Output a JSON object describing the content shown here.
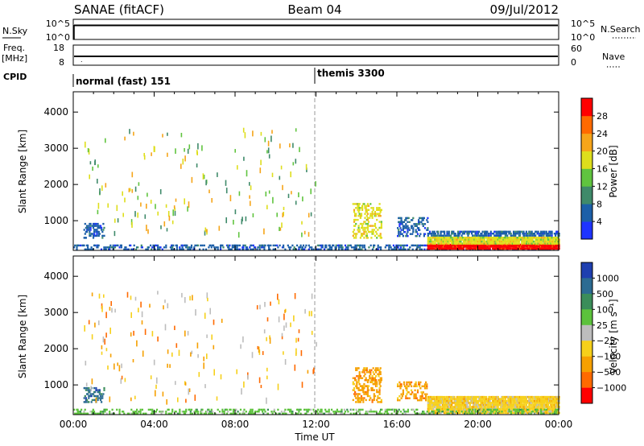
{
  "header": {
    "station": "SANAE (fitACF)",
    "beam": "Beam 04",
    "date": "09/Jul/2012"
  },
  "panels": {
    "nsky": {
      "label": "N.Sky",
      "left_ticks": [
        "10^5",
        "10^0"
      ],
      "right_ticks": [
        "10^5",
        "10^0"
      ],
      "right_label": "N.Search",
      "value": 100000
    },
    "freq": {
      "label": "Freq.",
      "unit": "[MHz]",
      "left_ticks": [
        "18",
        "8"
      ],
      "right_ticks": [
        "60",
        "0"
      ],
      "right_label": "Nave",
      "value": 12
    },
    "cpid": {
      "label": "CPID",
      "segments": [
        {
          "name": "normal (fast) 151",
          "start_hour": 0
        },
        {
          "name": "themis 3300",
          "start_hour": 12
        }
      ]
    }
  },
  "chart_data": [
    {
      "type": "heatmap",
      "name": "Power",
      "ylabel": "Slant Range [km]",
      "ylim": [
        180,
        4560
      ],
      "yticks": [
        1000,
        2000,
        3000,
        4000
      ],
      "xlim": [
        0,
        24
      ],
      "colorbar": {
        "label": "Power [dB]",
        "ticks": [
          "4",
          "8",
          "12",
          "16",
          "20",
          "24",
          "28"
        ],
        "range": [
          0,
          32
        ],
        "colors": [
          "#1e34ff",
          "#1c5fa8",
          "#3f8a6a",
          "#60c43f",
          "#dede1c",
          "#f6a51a",
          "#ff6a00",
          "#ff0000"
        ]
      },
      "bands": [
        {
          "x": [
            0.0,
            24.0
          ],
          "y": [
            180,
            300
          ],
          "value": 6,
          "density": 0.35
        },
        {
          "x": [
            17.5,
            24.0
          ],
          "y": [
            200,
            340
          ],
          "value": 28,
          "density": 0.95
        },
        {
          "x": [
            17.5,
            24.0
          ],
          "y": [
            340,
            560
          ],
          "value": 16,
          "density": 0.85
        },
        {
          "x": [
            17.5,
            24.0
          ],
          "y": [
            560,
            700
          ],
          "value": 6,
          "density": 0.55
        },
        {
          "x": [
            13.8,
            15.2
          ],
          "y": [
            500,
            1450
          ],
          "value": 18,
          "density": 0.3
        },
        {
          "x": [
            16.0,
            17.5
          ],
          "y": [
            550,
            1100
          ],
          "value": 6,
          "density": 0.3
        },
        {
          "x": [
            0.5,
            1.5
          ],
          "y": [
            500,
            900
          ],
          "value": 6,
          "density": 0.35
        }
      ],
      "scatter": {
        "x": [
          0.5,
          12.0
        ],
        "y": [
          600,
          3600
        ],
        "count": 170,
        "palette": [
          2,
          3,
          4,
          5
        ]
      }
    },
    {
      "type": "heatmap",
      "name": "Velocity",
      "ylabel": "Slant Range [km]",
      "ylim": [
        180,
        4560
      ],
      "yticks": [
        1000,
        2000,
        3000,
        4000
      ],
      "xlim": [
        0,
        24
      ],
      "xticks": [
        "00:00",
        "04:00",
        "08:00",
        "12:00",
        "16:00",
        "20:00",
        "00:00"
      ],
      "xlabel": "Time UT",
      "colorbar": {
        "label": "Velocity [m s⁻¹]",
        "ticks": [
          "1000",
          "500",
          "100",
          "25",
          "−25",
          "−100",
          "−500",
          "−1000"
        ],
        "colors": [
          "#1e3fb0",
          "#2c6b92",
          "#3b8d5a",
          "#5cc23c",
          "#bdbdbd",
          "#f6d01a",
          "#f6a000",
          "#ff6a00",
          "#ff0000"
        ]
      },
      "bands": [
        {
          "x": [
            17.5,
            24.0
          ],
          "y": [
            200,
            650
          ],
          "value": -100,
          "density": 0.85
        },
        {
          "x": [
            0.0,
            24.0
          ],
          "y": [
            180,
            300
          ],
          "value": 25,
          "density": 0.3
        },
        {
          "x": [
            13.8,
            15.2
          ],
          "y": [
            500,
            1450
          ],
          "value": -500,
          "density": 0.35
        },
        {
          "x": [
            16.0,
            17.5
          ],
          "y": [
            550,
            1100
          ],
          "value": -500,
          "density": 0.3
        },
        {
          "x": [
            0.5,
            1.5
          ],
          "y": [
            500,
            900
          ],
          "value": 500,
          "density": 0.3
        }
      ],
      "scatter": {
        "x": [
          0.5,
          12.0
        ],
        "y": [
          600,
          3600
        ],
        "count": 170,
        "palette": [
          4,
          5,
          6,
          7
        ]
      }
    }
  ]
}
